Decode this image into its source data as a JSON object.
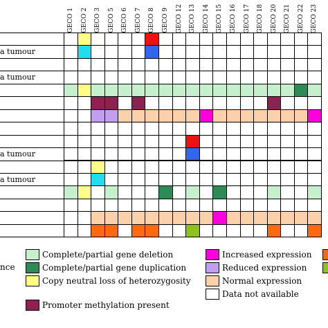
{
  "header": {
    "columns": [
      "GECO 1",
      "GECO 2",
      "GECO 3",
      "GECO 5",
      "GECO 6",
      "GECO 7",
      "GECO 8",
      "GECO 9",
      "GECO 12",
      "GECO 13",
      "GECO 14",
      "GECO 15",
      "GECO 16",
      "GECO 17",
      "GECO 18",
      "GECO 20",
      "GECO 21",
      "GECO 22",
      "GECO 23"
    ]
  },
  "row_labels": [
    {
      "row": 1,
      "text": "a tumour"
    },
    {
      "row": 3,
      "text": "a tumour"
    },
    {
      "row": 9,
      "text": "a tumour"
    },
    {
      "row": 11,
      "text": "a tumour"
    }
  ],
  "colors": {
    "W": "#ffffff",
    "G": "#c6efce",
    "DG": "#2e8b57",
    "Y": "#ffff88",
    "PM": "#8b2252",
    "M": "#ff00dd",
    "L": "#c0a0ee",
    "N": "#fcd0a8",
    "O": "#ff6a10",
    "R": "#ee1111",
    "B": "#3366ee",
    "C": "#22ddee",
    "LM": "#8ec31b"
  },
  "grid": [
    [
      "W",
      "Y",
      "W",
      "W",
      "W",
      "W",
      "R",
      "W",
      "W",
      "W",
      "W",
      "W",
      "W",
      "W",
      "W",
      "W",
      "W",
      "W",
      "W"
    ],
    [
      "W",
      "C",
      "W",
      "W",
      "W",
      "W",
      "B",
      "W",
      "W",
      "W",
      "W",
      "W",
      "W",
      "W",
      "W",
      "W",
      "W",
      "W",
      "W"
    ],
    [
      "W",
      "W",
      "W",
      "W",
      "W",
      "W",
      "W",
      "W",
      "W",
      "W",
      "W",
      "W",
      "W",
      "W",
      "W",
      "W",
      "W",
      "W",
      "W"
    ],
    [
      "W",
      "W",
      "W",
      "W",
      "W",
      "W",
      "W",
      "W",
      "W",
      "W",
      "W",
      "W",
      "W",
      "W",
      "W",
      "W",
      "W",
      "W",
      "W"
    ],
    [
      "G",
      "Y",
      "G",
      "G",
      "G",
      "G",
      "G",
      "G",
      "G",
      "G",
      "G",
      "G",
      "G",
      "G",
      "G",
      "G",
      "G",
      "DG",
      "G"
    ],
    [
      "W",
      "W",
      "PM",
      "PM",
      "W",
      "PM",
      "W",
      "W",
      "W",
      "W",
      "W",
      "W",
      "W",
      "W",
      "W",
      "PM",
      "W",
      "W",
      "W"
    ],
    [
      "W",
      "W",
      "L",
      "L",
      "N",
      "N",
      "N",
      "N",
      "N",
      "N",
      "M",
      "N",
      "N",
      "N",
      "N",
      "N",
      "N",
      "N",
      "M"
    ],
    [
      "W",
      "W",
      "W",
      "W",
      "W",
      "W",
      "W",
      "W",
      "W",
      "W",
      "W",
      "W",
      "W",
      "W",
      "W",
      "W",
      "W",
      "W",
      "W"
    ],
    [
      "W",
      "W",
      "W",
      "W",
      "W",
      "W",
      "W",
      "W",
      "W",
      "R",
      "W",
      "W",
      "W",
      "W",
      "W",
      "W",
      "W",
      "W",
      "W"
    ],
    [
      "W",
      "W",
      "W",
      "W",
      "W",
      "W",
      "W",
      "W",
      "W",
      "B",
      "W",
      "W",
      "W",
      "W",
      "W",
      "W",
      "W",
      "W",
      "W"
    ],
    [
      "W",
      "W",
      "Y",
      "W",
      "W",
      "W",
      "W",
      "W",
      "W",
      "W",
      "W",
      "W",
      "W",
      "W",
      "W",
      "W",
      "W",
      "W",
      "W"
    ],
    [
      "W",
      "W",
      "C",
      "W",
      "W",
      "W",
      "W",
      "W",
      "W",
      "W",
      "W",
      "W",
      "W",
      "W",
      "W",
      "W",
      "W",
      "W",
      "W"
    ],
    [
      "G",
      "Y",
      "W",
      "G",
      "W",
      "W",
      "W",
      "DG",
      "W",
      "G",
      "W",
      "DG",
      "W",
      "W",
      "W",
      "G",
      "W",
      "W",
      "G"
    ],
    [
      "W",
      "W",
      "W",
      "W",
      "W",
      "W",
      "W",
      "W",
      "W",
      "W",
      "W",
      "W",
      "W",
      "W",
      "W",
      "W",
      "W",
      "W",
      "W"
    ],
    [
      "W",
      "W",
      "N",
      "N",
      "N",
      "N",
      "N",
      "N",
      "N",
      "N",
      "N",
      "M",
      "N",
      "N",
      "N",
      "N",
      "N",
      "N",
      "N"
    ],
    [
      "W",
      "W",
      "O",
      "O",
      "W",
      "O",
      "O",
      "W",
      "W",
      "LM",
      "W",
      "W",
      "W",
      "W",
      "W",
      "O",
      "W",
      "W",
      "O"
    ]
  ],
  "legend": {
    "left_label": "nce",
    "items": [
      {
        "key": "G",
        "text": "Complete/partial gene deletion"
      },
      {
        "key": "DG",
        "text": "Complete/partial gene duplication"
      },
      {
        "key": "Y",
        "text": "Copy neutral loss of heterozygosity"
      },
      {
        "key": "PM",
        "text": "Promoter methylation present"
      },
      {
        "key": "M",
        "text": "Increased expression"
      },
      {
        "key": "L",
        "text": "Reduced expression"
      },
      {
        "key": "N",
        "text": "Normal expression"
      },
      {
        "key": "W",
        "text": "Data not available"
      },
      {
        "key": "O",
        "text": ""
      },
      {
        "key": "LM",
        "text": ""
      }
    ]
  }
}
